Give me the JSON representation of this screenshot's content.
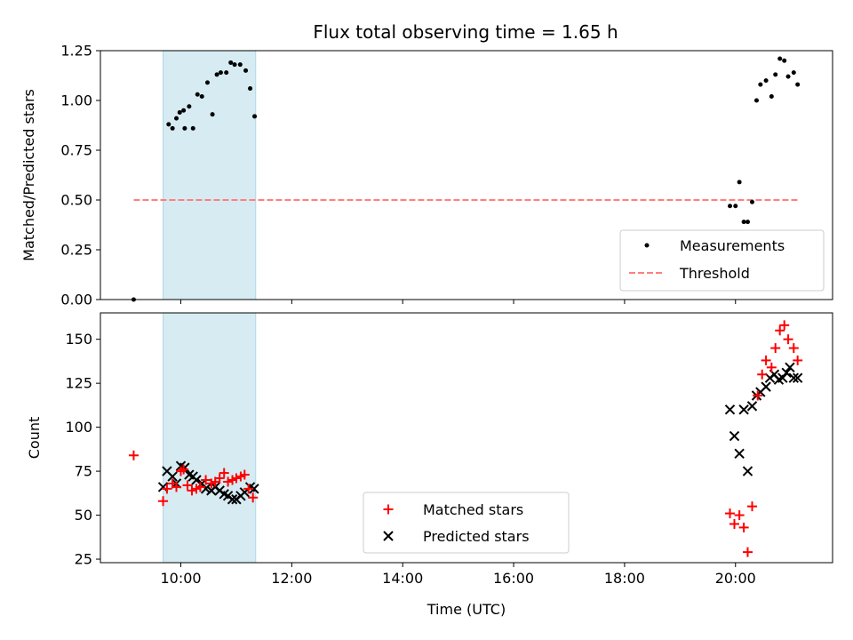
{
  "chart_data": {
    "title": "Flux total observing time = 1.65 h",
    "xlabel": "Time (UTC)",
    "x_ticks": [
      "10:00",
      "12:00",
      "14:00",
      "16:00",
      "18:00",
      "20:00"
    ],
    "x_tick_hours": [
      10,
      12,
      14,
      16,
      18,
      20
    ],
    "xlim_hours": [
      8.55,
      21.75
    ],
    "observing_window_hours": [
      9.68,
      11.35
    ],
    "colors": {
      "window": "#add8e6",
      "measurements": "#000000",
      "threshold": "#ff7f7f",
      "matched": "#ff0000",
      "predicted": "#000000"
    },
    "panels": [
      {
        "type": "scatter",
        "ylabel": "Matched/Predicted stars",
        "ylim": [
          0,
          1.25
        ],
        "y_ticks": [
          "0.00",
          "0.25",
          "0.50",
          "0.75",
          "1.00",
          "1.25"
        ],
        "y_tick_values": [
          0,
          0.25,
          0.5,
          0.75,
          1.0,
          1.25
        ],
        "legend_position": "lower right",
        "threshold": {
          "name": "Threshold",
          "value": 0.5,
          "x_range_hours": [
            9.15,
            21.15
          ]
        },
        "series": [
          {
            "name": "Measurements",
            "points": [
              [
                9.15,
                0.0
              ],
              [
                9.78,
                0.88
              ],
              [
                9.85,
                0.86
              ],
              [
                9.92,
                0.91
              ],
              [
                9.98,
                0.94
              ],
              [
                10.05,
                0.95
              ],
              [
                10.07,
                0.86
              ],
              [
                10.15,
                0.97
              ],
              [
                10.22,
                0.86
              ],
              [
                10.3,
                1.03
              ],
              [
                10.38,
                1.02
              ],
              [
                10.48,
                1.09
              ],
              [
                10.57,
                0.93
              ],
              [
                10.65,
                1.13
              ],
              [
                10.72,
                1.14
              ],
              [
                10.82,
                1.14
              ],
              [
                10.9,
                1.19
              ],
              [
                10.97,
                1.18
              ],
              [
                11.07,
                1.18
              ],
              [
                11.17,
                1.15
              ],
              [
                11.25,
                1.06
              ],
              [
                11.33,
                0.92
              ],
              [
                19.9,
                0.47
              ],
              [
                20.0,
                0.47
              ],
              [
                20.07,
                0.59
              ],
              [
                20.15,
                0.39
              ],
              [
                20.22,
                0.39
              ],
              [
                20.3,
                0.49
              ],
              [
                20.38,
                1.0
              ],
              [
                20.45,
                1.08
              ],
              [
                20.55,
                1.1
              ],
              [
                20.65,
                1.02
              ],
              [
                20.72,
                1.13
              ],
              [
                20.8,
                1.21
              ],
              [
                20.88,
                1.2
              ],
              [
                20.95,
                1.12
              ],
              [
                21.05,
                1.14
              ],
              [
                21.12,
                1.08
              ]
            ]
          }
        ]
      },
      {
        "type": "scatter",
        "ylabel": "Count",
        "ylim": [
          23,
          165
        ],
        "y_ticks": [
          "25",
          "50",
          "75",
          "100",
          "125",
          "150"
        ],
        "y_tick_values": [
          25,
          50,
          75,
          100,
          125,
          150
        ],
        "legend_position": "lower center",
        "series": [
          {
            "name": "Matched stars",
            "marker": "+",
            "points": [
              [
                9.15,
                84
              ],
              [
                9.68,
                58
              ],
              [
                9.75,
                65
              ],
              [
                9.85,
                68
              ],
              [
                9.92,
                66
              ],
              [
                10.0,
                75
              ],
              [
                10.05,
                76
              ],
              [
                10.12,
                67
              ],
              [
                10.2,
                64
              ],
              [
                10.28,
                65
              ],
              [
                10.35,
                66
              ],
              [
                10.45,
                70
              ],
              [
                10.55,
                68
              ],
              [
                10.62,
                69
              ],
              [
                10.7,
                71
              ],
              [
                10.78,
                74
              ],
              [
                10.85,
                69
              ],
              [
                10.93,
                70
              ],
              [
                11.0,
                71
              ],
              [
                11.08,
                72
              ],
              [
                11.15,
                73
              ],
              [
                11.22,
                65
              ],
              [
                11.3,
                60
              ],
              [
                19.9,
                51
              ],
              [
                19.98,
                45
              ],
              [
                20.07,
                50
              ],
              [
                20.15,
                43
              ],
              [
                20.22,
                29
              ],
              [
                20.3,
                55
              ],
              [
                20.4,
                118
              ],
              [
                20.48,
                130
              ],
              [
                20.55,
                138
              ],
              [
                20.65,
                134
              ],
              [
                20.72,
                145
              ],
              [
                20.8,
                155
              ],
              [
                20.88,
                158
              ],
              [
                20.95,
                150
              ],
              [
                21.05,
                145
              ],
              [
                21.12,
                138
              ]
            ]
          },
          {
            "name": "Predicted stars",
            "marker": "x",
            "points": [
              [
                9.68,
                66
              ],
              [
                9.75,
                75
              ],
              [
                9.85,
                72
              ],
              [
                9.92,
                68
              ],
              [
                10.0,
                78
              ],
              [
                10.07,
                77
              ],
              [
                10.15,
                73
              ],
              [
                10.22,
                72
              ],
              [
                10.28,
                70
              ],
              [
                10.38,
                68
              ],
              [
                10.45,
                65
              ],
              [
                10.55,
                64
              ],
              [
                10.62,
                66
              ],
              [
                10.7,
                64
              ],
              [
                10.78,
                62
              ],
              [
                10.85,
                61
              ],
              [
                10.93,
                59
              ],
              [
                11.0,
                59
              ],
              [
                11.08,
                61
              ],
              [
                11.15,
                63
              ],
              [
                11.25,
                66
              ],
              [
                11.32,
                65
              ],
              [
                19.9,
                110
              ],
              [
                19.98,
                95
              ],
              [
                20.07,
                85
              ],
              [
                20.15,
                110
              ],
              [
                20.22,
                75
              ],
              [
                20.3,
                112
              ],
              [
                20.38,
                118
              ],
              [
                20.45,
                120
              ],
              [
                20.55,
                123
              ],
              [
                20.62,
                128
              ],
              [
                20.7,
                130
              ],
              [
                20.78,
                127
              ],
              [
                20.85,
                128
              ],
              [
                20.92,
                131
              ],
              [
                20.98,
                134
              ],
              [
                21.05,
                128
              ],
              [
                21.12,
                128
              ]
            ]
          }
        ]
      }
    ]
  }
}
